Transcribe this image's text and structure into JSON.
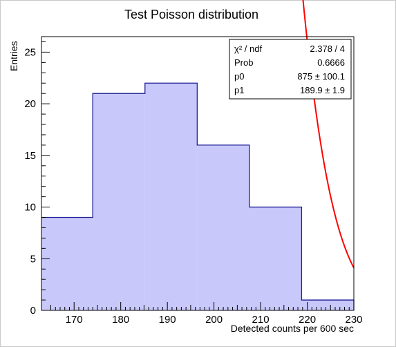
{
  "chart_data": {
    "type": "bar",
    "title": "Test Poisson distribution",
    "xlabel": "Detected counts per 600 sec",
    "ylabel": "Entries",
    "xlim": [
      163,
      230
    ],
    "ylim": [
      0,
      26.5
    ],
    "x_ticks": [
      170,
      180,
      190,
      200,
      210,
      220,
      230
    ],
    "y_ticks": [
      0,
      5,
      10,
      15,
      20,
      25
    ],
    "bins": [
      {
        "x0": 163,
        "x1": 174,
        "value": 9
      },
      {
        "x0": 174,
        "x1": 185.2,
        "value": 21
      },
      {
        "x0": 185.2,
        "x1": 196.4,
        "value": 22
      },
      {
        "x0": 196.4,
        "x1": 207.6,
        "value": 16
      },
      {
        "x0": 207.6,
        "x1": 218.8,
        "value": 10
      },
      {
        "x0": 218.8,
        "x1": 230,
        "value": 1
      }
    ],
    "fit": {
      "function": "gaussian",
      "p0": 875,
      "p1": 189.9,
      "sigma": 13.78,
      "bin_width": 11.2,
      "color": "#ff0000"
    },
    "hist_fill": "#c8c8fa",
    "hist_line": "#1e1e96",
    "grid": false,
    "legend": "top-right"
  },
  "stats_box": {
    "rows": [
      {
        "label": "χ² / ndf",
        "value": "2.378 / 4"
      },
      {
        "label": "Prob",
        "value": "0.6666"
      },
      {
        "label": "p0",
        "value": "875 ± 100.1"
      },
      {
        "label": "p1",
        "value": "189.9 ± 1.9"
      }
    ]
  }
}
